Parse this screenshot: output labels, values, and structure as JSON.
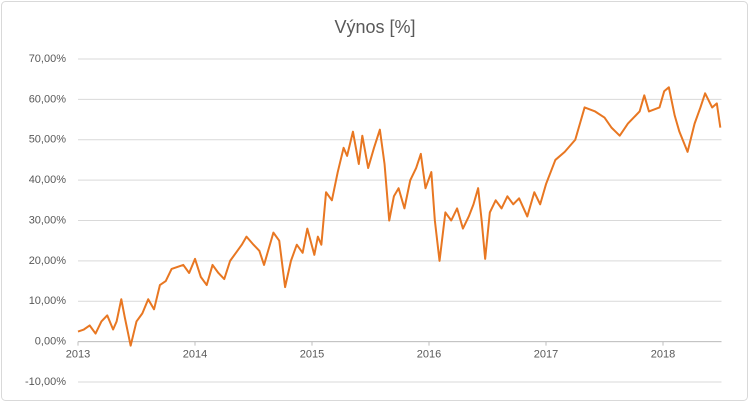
{
  "chart_data": {
    "type": "line",
    "title": "Výnos [%]",
    "color": "#e87722",
    "grid": true,
    "xlim": [
      2013,
      2018.5
    ],
    "xticks": [
      2013,
      2014,
      2015,
      2016,
      2017,
      2018
    ],
    "ylim": [
      -10,
      70
    ],
    "yticks": [
      {
        "value": -10,
        "label": "-10,00%"
      },
      {
        "value": 0,
        "label": "0,00%"
      },
      {
        "value": 10,
        "label": "10,00%"
      },
      {
        "value": 20,
        "label": "20,00%"
      },
      {
        "value": 30,
        "label": "30,00%"
      },
      {
        "value": 40,
        "label": "40,00%"
      },
      {
        "value": 50,
        "label": "50,00%"
      },
      {
        "value": 60,
        "label": "60,00%"
      },
      {
        "value": 70,
        "label": "70,00%"
      }
    ],
    "x": [
      2013,
      2013.05,
      2013.1,
      2013.15,
      2013.2,
      2013.25,
      2013.3,
      2013.33,
      2013.37,
      2013.4,
      2013.45,
      2013.5,
      2013.55,
      2013.6,
      2013.65,
      2013.7,
      2013.75,
      2013.8,
      2013.85,
      2013.9,
      2013.95,
      2014,
      2014.05,
      2014.1,
      2014.15,
      2014.2,
      2014.25,
      2014.3,
      2014.35,
      2014.4,
      2014.44,
      2014.5,
      2014.55,
      2014.59,
      2014.63,
      2014.67,
      2014.72,
      2014.77,
      2014.82,
      2014.87,
      2014.92,
      2014.96,
      2015.02,
      2015.05,
      2015.08,
      2015.12,
      2015.17,
      2015.22,
      2015.27,
      2015.3,
      2015.35,
      2015.4,
      2015.43,
      2015.48,
      2015.53,
      2015.58,
      2015.62,
      2015.66,
      2015.7,
      2015.74,
      2015.79,
      2015.84,
      2015.89,
      2015.93,
      2015.97,
      2016.02,
      2016.05,
      2016.09,
      2016.14,
      2016.19,
      2016.24,
      2016.29,
      2016.34,
      2016.38,
      2016.42,
      2016.45,
      2016.48,
      2016.52,
      2016.57,
      2016.62,
      2016.67,
      2016.72,
      2016.77,
      2016.84,
      2016.9,
      2016.95,
      2017,
      2017.08,
      2017.16,
      2017.25,
      2017.29,
      2017.33,
      2017.42,
      2017.5,
      2017.56,
      2017.63,
      2017.7,
      2017.8,
      2017.84,
      2017.88,
      2017.97,
      2018.01,
      2018.05,
      2018.1,
      2018.14,
      2018.21,
      2018.27,
      2018.32,
      2018.36,
      2018.42,
      2018.46,
      2018.49
    ],
    "values": [
      2.5,
      3,
      4,
      2,
      5,
      6.5,
      3,
      5,
      10.5,
      6,
      -1,
      5,
      7,
      10.5,
      8,
      14,
      15,
      18,
      18.5,
      19,
      17,
      20.5,
      16,
      14,
      19,
      17,
      15.5,
      20,
      22,
      24,
      26,
      24,
      22.5,
      19,
      23,
      27,
      25,
      13.5,
      20,
      24,
      22,
      28,
      21.5,
      26,
      24,
      37,
      35,
      42,
      48,
      46,
      52,
      44,
      51,
      43,
      48,
      52.5,
      44,
      30,
      36,
      38,
      33,
      40,
      43,
      46.5,
      38,
      42,
      30,
      20,
      32,
      30,
      33,
      28,
      31,
      34,
      38,
      30,
      20.5,
      32,
      35,
      33,
      36,
      34,
      35.5,
      31,
      37,
      34,
      39,
      45,
      47,
      50,
      54,
      58,
      57,
      55.5,
      53,
      51,
      54,
      57,
      61,
      57,
      58,
      62,
      63,
      56,
      52,
      47,
      54,
      58,
      61.5,
      58,
      59,
      53
    ]
  }
}
